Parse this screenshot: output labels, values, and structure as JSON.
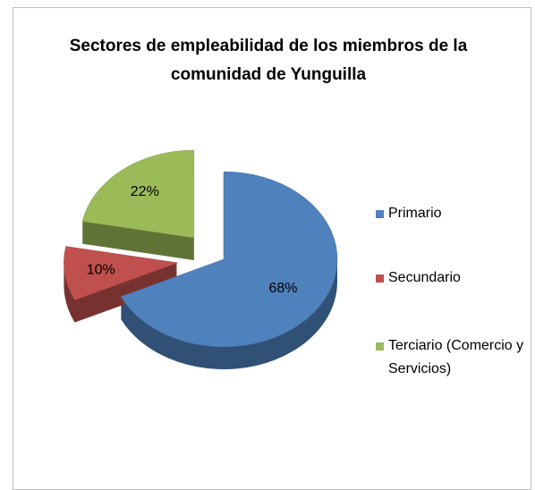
{
  "chart_data": {
    "type": "pie3d",
    "title": "Sectores de empleabilidad de los miembros de la comunidad  de Yunguilla",
    "categories": [
      "Primario",
      "Secundario",
      "Terciario (Comercio y Servicios)"
    ],
    "values": [
      68,
      10,
      22
    ],
    "value_labels": [
      "68%",
      "10%",
      "22%"
    ],
    "colors": [
      "#4f81bd",
      "#c0504d",
      "#9bbb59"
    ],
    "legend": "right"
  }
}
